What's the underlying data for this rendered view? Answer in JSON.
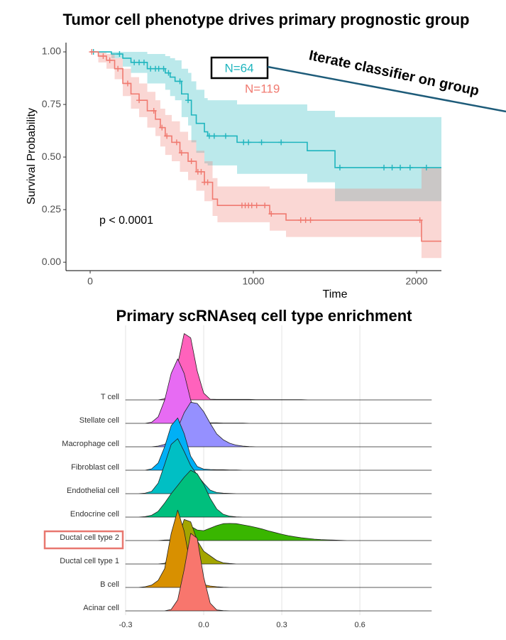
{
  "chart_data": [
    {
      "type": "survival",
      "title": "Tumor cell phenotype drives primary prognostic group",
      "x_label": "Time",
      "y_label": "Survival Probability",
      "annotations": [
        "p < 0.0001",
        "Iterate classifier on group"
      ],
      "xlim": [
        -148,
        2152
      ],
      "xticks": [
        0,
        1000,
        2000
      ],
      "ylim": [
        -0.04,
        1.044
      ],
      "yticks": [
        {
          "value": 1,
          "label": "1.00"
        },
        0.75,
        {
          "value": 0.5,
          "label": "0.50"
        },
        0.25,
        {
          "value": 0,
          "label": "0.00"
        }
      ],
      "grid": false,
      "series": [
        {
          "name": "N=64",
          "color": "#1fb5be",
          "x": [
            0,
            130,
            200,
            250,
            350,
            460,
            490,
            520,
            560,
            600,
            620,
            650,
            700,
            720,
            900,
            1330,
            1500
          ],
          "values": [
            1.0,
            0.99,
            0.97,
            0.95,
            0.92,
            0.9,
            0.88,
            0.86,
            0.8,
            0.77,
            0.7,
            0.66,
            0.62,
            0.6,
            0.57,
            0.53,
            0.45
          ],
          "upper": [
            1.0,
            1.0,
            1.0,
            1.0,
            0.99,
            0.98,
            0.97,
            0.96,
            0.92,
            0.9,
            0.86,
            0.82,
            0.78,
            0.77,
            0.75,
            0.72,
            0.69
          ],
          "lower": [
            1.0,
            0.97,
            0.93,
            0.9,
            0.85,
            0.82,
            0.79,
            0.77,
            0.69,
            0.65,
            0.57,
            0.52,
            0.47,
            0.46,
            0.42,
            0.38,
            0.29
          ],
          "censor_x": [
            20,
            180,
            270,
            300,
            330,
            370,
            400,
            420,
            450,
            480,
            550,
            600,
            730,
            760,
            830,
            940,
            970,
            1050,
            1170,
            1530,
            1800,
            1850,
            1900,
            1960,
            2060
          ]
        },
        {
          "name": "N=119",
          "color": "#f07a70",
          "x": [
            0,
            50,
            100,
            150,
            200,
            250,
            300,
            350,
            400,
            430,
            460,
            500,
            550,
            600,
            650,
            700,
            750,
            780,
            1100,
            1200,
            2030
          ],
          "values": [
            1.0,
            0.98,
            0.96,
            0.92,
            0.85,
            0.8,
            0.77,
            0.72,
            0.68,
            0.64,
            0.6,
            0.57,
            0.52,
            0.48,
            0.43,
            0.38,
            0.3,
            0.27,
            0.23,
            0.2,
            0.1
          ],
          "upper": [
            1.0,
            1.0,
            0.99,
            0.97,
            0.92,
            0.88,
            0.85,
            0.81,
            0.77,
            0.73,
            0.7,
            0.67,
            0.62,
            0.58,
            0.53,
            0.48,
            0.4,
            0.36,
            0.35,
            0.35,
            0.45
          ],
          "lower": [
            1.0,
            0.95,
            0.92,
            0.87,
            0.79,
            0.73,
            0.69,
            0.64,
            0.6,
            0.55,
            0.51,
            0.48,
            0.43,
            0.39,
            0.34,
            0.29,
            0.22,
            0.19,
            0.15,
            0.12,
            0.02
          ],
          "censor_x": [
            10,
            80,
            120,
            170,
            230,
            300,
            390,
            440,
            470,
            530,
            560,
            620,
            660,
            680,
            700,
            720,
            930,
            950,
            970,
            990,
            1020,
            1070,
            1110,
            1290,
            1320,
            1350,
            2020
          ]
        }
      ]
    },
    {
      "type": "ridgeline",
      "title": "Primary scRNAseq cell type enrichment",
      "xlim": [
        -0.3,
        0.875
      ],
      "xticks": [
        -0.3,
        {
          "value": 0,
          "label": "0.0"
        },
        0.3,
        0.6
      ],
      "grid": true,
      "x": [
        -0.3,
        -0.275,
        -0.25,
        -0.225,
        -0.2,
        -0.175,
        -0.15,
        -0.125,
        -0.1,
        -0.075,
        -0.05,
        -0.025,
        0,
        0.025,
        0.05,
        0.075,
        0.1,
        0.125,
        0.15,
        0.175,
        0.2,
        0.225,
        0.25,
        0.275,
        0.3,
        0.325,
        0.35,
        0.375,
        0.4,
        0.425,
        0.45,
        0.475,
        0.5,
        0.525,
        0.55,
        0.575,
        0.6,
        0.625,
        0.65,
        0.675,
        0.7,
        0.725,
        0.75,
        0.775,
        0.8,
        0.825,
        0.85,
        0.875
      ],
      "series": [
        {
          "name": "T cell",
          "color": "#ff62bc",
          "values": [
            0,
            0,
            0,
            0,
            0,
            0,
            0.05,
            0.41,
            1.53,
            2.83,
            2.65,
            1.23,
            0.29,
            0.03,
            0.02,
            0.02,
            0.02,
            0.02,
            0.02,
            0.02,
            0.01,
            0.01,
            0.01,
            0.01,
            0.01,
            0.01,
            0.01,
            0.01,
            0,
            0,
            0,
            0,
            0,
            0,
            0,
            0,
            0,
            0,
            0,
            0,
            0,
            0,
            0,
            0,
            0,
            0,
            0,
            0
          ]
        },
        {
          "name": "Stellate cell",
          "color": "#e76bf3",
          "values": [
            0,
            0,
            0,
            0,
            0.05,
            0.28,
            0.99,
            2.13,
            2.75,
            2.13,
            0.99,
            0.28,
            0.05,
            0.02,
            0.02,
            0.01,
            0.01,
            0.01,
            0.01,
            0,
            0,
            0,
            0,
            0,
            0,
            0,
            0,
            0,
            0,
            0,
            0,
            0,
            0,
            0,
            0,
            0,
            0,
            0,
            0,
            0,
            0,
            0,
            0,
            0,
            0,
            0,
            0,
            0
          ]
        },
        {
          "name": "Macrophage cell",
          "color": "#9590ff",
          "values": [
            0,
            0,
            0,
            0,
            0,
            0.03,
            0.1,
            0.33,
            0.8,
            1.45,
            1.9,
            1.85,
            1.5,
            1.0,
            0.55,
            0.3,
            0.15,
            0.07,
            0.03,
            0.01,
            0,
            0,
            0,
            0,
            0,
            0,
            0,
            0,
            0,
            0,
            0,
            0,
            0,
            0,
            0,
            0,
            0,
            0,
            0,
            0,
            0,
            0,
            0,
            0,
            0,
            0,
            0,
            0
          ]
        },
        {
          "name": "Fibroblast cell",
          "color": "#00b0f6",
          "values": [
            0,
            0,
            0,
            0,
            0.06,
            0.31,
            1.0,
            1.9,
            2.23,
            1.56,
            0.6,
            0.16,
            0.05,
            0.03,
            0.02,
            0.02,
            0.01,
            0.01,
            0,
            0,
            0,
            0,
            0,
            0,
            0,
            0,
            0,
            0,
            0,
            0,
            0,
            0,
            0,
            0,
            0,
            0,
            0,
            0,
            0,
            0,
            0,
            0,
            0,
            0,
            0,
            0,
            0,
            0
          ]
        },
        {
          "name": "Endothelial cell",
          "color": "#00bfc4",
          "values": [
            0,
            0,
            0,
            0.02,
            0.1,
            0.45,
            1.25,
            2.1,
            2.35,
            1.8,
            1.2,
            0.8,
            0.45,
            0.15,
            0.05,
            0.02,
            0.01,
            0,
            0,
            0,
            0,
            0,
            0,
            0,
            0,
            0,
            0,
            0,
            0,
            0,
            0,
            0,
            0,
            0,
            0,
            0,
            0,
            0,
            0,
            0,
            0,
            0,
            0,
            0,
            0,
            0,
            0,
            0
          ]
        },
        {
          "name": "Endocrine cell",
          "color": "#00bf7d",
          "values": [
            0,
            0,
            0,
            0.02,
            0.08,
            0.25,
            0.6,
            1.0,
            1.35,
            1.7,
            2.0,
            1.85,
            1.4,
            0.8,
            0.35,
            0.12,
            0.04,
            0.01,
            0,
            0,
            0,
            0,
            0,
            0,
            0,
            0,
            0,
            0,
            0,
            0,
            0,
            0,
            0,
            0,
            0,
            0,
            0,
            0,
            0,
            0,
            0,
            0,
            0,
            0,
            0,
            0,
            0,
            0
          ]
        },
        {
          "name": "Ductal cell type 2",
          "color": "#39b600",
          "values": [
            0,
            0,
            0,
            0,
            0,
            0,
            0.02,
            0.03,
            0.18,
            0.51,
            0.61,
            0.45,
            0.42,
            0.53,
            0.64,
            0.72,
            0.73,
            0.72,
            0.67,
            0.62,
            0.56,
            0.49,
            0.41,
            0.34,
            0.27,
            0.21,
            0.16,
            0.12,
            0.09,
            0.06,
            0.04,
            0.03,
            0.02,
            0.01,
            0,
            0,
            0,
            0,
            0,
            0,
            0,
            0,
            0,
            0,
            0,
            0,
            0,
            0
          ]
        },
        {
          "name": "Ductal cell type 1",
          "color": "#a3a500",
          "values": [
            0,
            0,
            0,
            0,
            0,
            0,
            0.03,
            0.27,
            1.0,
            1.9,
            1.8,
            1.0,
            0.55,
            0.35,
            0.15,
            0.05,
            0.02,
            0,
            0,
            0,
            0,
            0,
            0,
            0,
            0,
            0,
            0,
            0,
            0,
            0,
            0,
            0,
            0,
            0,
            0,
            0,
            0,
            0,
            0,
            0,
            0,
            0,
            0,
            0,
            0,
            0,
            0,
            0
          ]
        },
        {
          "name": "B cell",
          "color": "#d89000",
          "values": [
            0,
            0,
            0,
            0.03,
            0.1,
            0.3,
            0.8,
            2.3,
            3.3,
            2.4,
            0.9,
            0.25,
            0.12,
            0.06,
            0.03,
            0.01,
            0,
            0,
            0,
            0,
            0,
            0,
            0,
            0,
            0,
            0,
            0,
            0,
            0,
            0,
            0,
            0,
            0,
            0,
            0,
            0,
            0,
            0,
            0,
            0,
            0,
            0,
            0,
            0,
            0,
            0,
            0,
            0
          ]
        },
        {
          "name": "Acinar cell",
          "color": "#f8766d",
          "values": [
            0,
            0,
            0,
            0,
            0,
            0,
            0,
            0.06,
            0.47,
            1.76,
            3.31,
            3.1,
            1.44,
            0.33,
            0.04,
            0.01,
            0,
            0,
            0,
            0,
            0,
            0,
            0,
            0,
            0,
            0,
            0,
            0,
            0,
            0,
            0,
            0,
            0,
            0,
            0,
            0,
            0,
            0,
            0,
            0,
            0,
            0,
            0,
            0,
            0,
            0,
            0,
            0
          ]
        }
      ]
    }
  ]
}
